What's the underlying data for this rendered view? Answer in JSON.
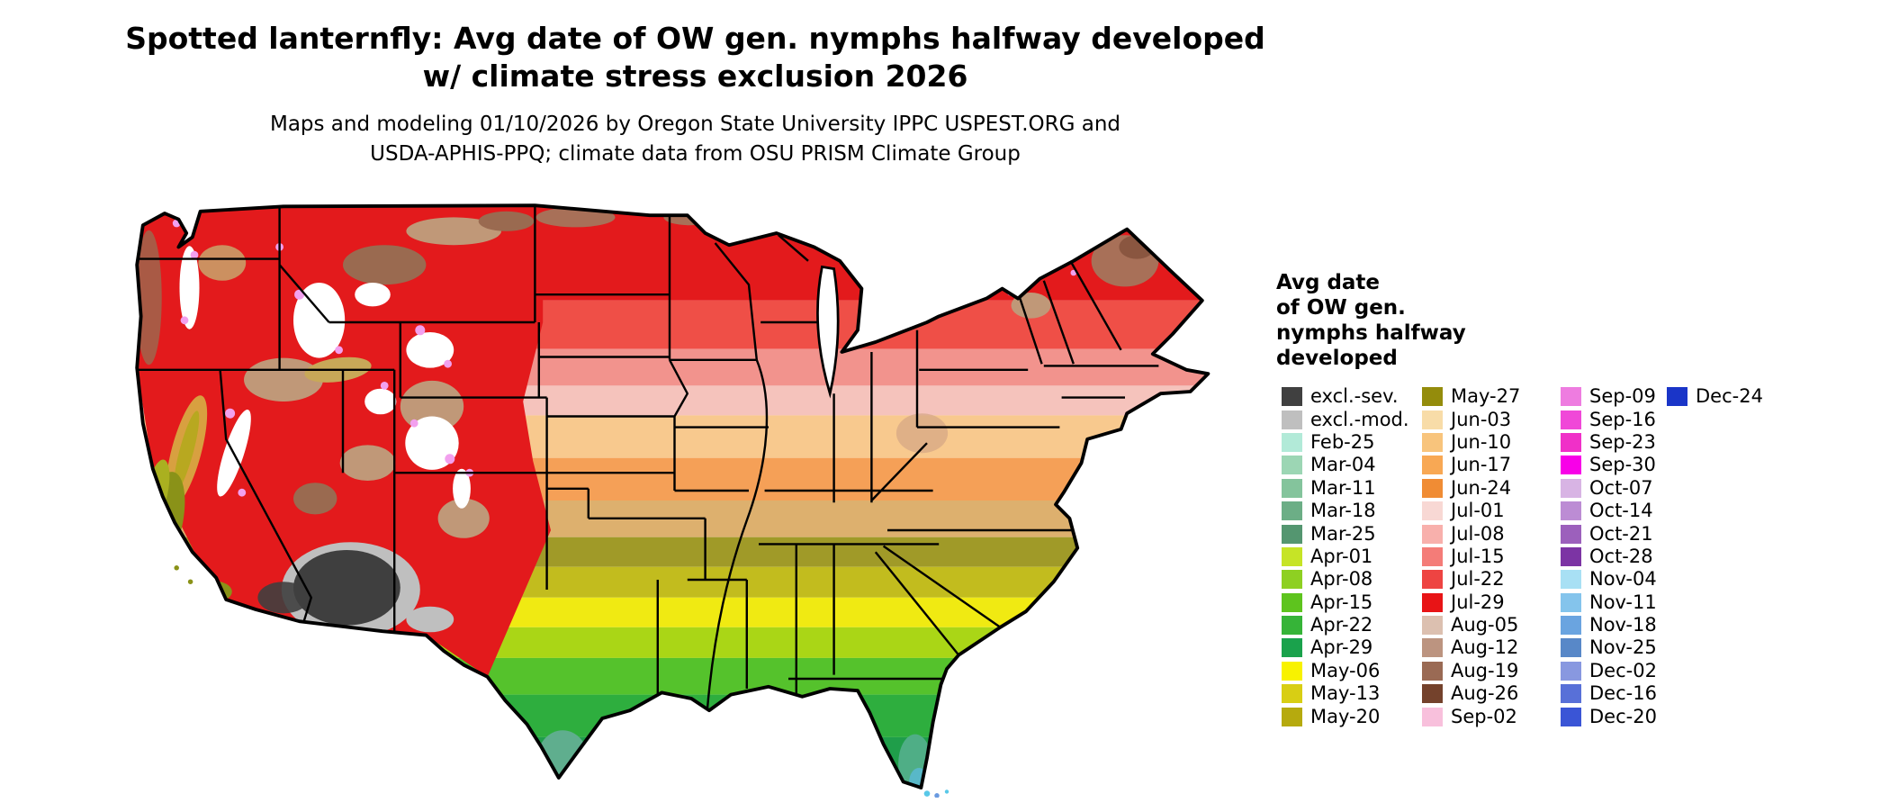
{
  "header": {
    "title_line1": "Spotted lanternfly: Avg date of OW gen. nymphs halfway developed",
    "title_line2": "w/ climate stress exclusion 2026",
    "subtitle_line1": "Maps and modeling 01/10/2026 by Oregon State University IPPC USPEST.ORG and",
    "subtitle_line2": "USDA-APHIS-PPQ; climate data from OSU PRISM Climate Group"
  },
  "legend": {
    "title_lines": [
      "Avg date",
      "of OW gen.",
      "nymphs halfway",
      "developed"
    ],
    "columns": [
      {
        "entries": [
          {
            "label": "excl.-sev.",
            "color": "#404040"
          },
          {
            "label": "excl.-mod.",
            "color": "#bfbfbf"
          },
          {
            "label": "Feb-25",
            "color": "#b2ead8"
          },
          {
            "label": "Mar-04",
            "color": "#9cd6b4"
          },
          {
            "label": "Mar-11",
            "color": "#84c49c"
          },
          {
            "label": "Mar-18",
            "color": "#6cae86"
          },
          {
            "label": "Mar-25",
            "color": "#549670"
          },
          {
            "label": "Apr-01",
            "color": "#c6e426"
          },
          {
            "label": "Apr-08",
            "color": "#8ed022"
          },
          {
            "label": "Apr-15",
            "color": "#5ec41e"
          },
          {
            "label": "Apr-22",
            "color": "#36b438"
          },
          {
            "label": "Apr-29",
            "color": "#1aa24c"
          },
          {
            "label": "May-06",
            "color": "#f8f200"
          },
          {
            "label": "May-13",
            "color": "#d8ce14"
          },
          {
            "label": "May-20",
            "color": "#b6aa0e"
          }
        ]
      },
      {
        "entries": [
          {
            "label": "May-27",
            "color": "#948c0c"
          },
          {
            "label": "Jun-03",
            "color": "#f8dca8"
          },
          {
            "label": "Jun-10",
            "color": "#f8c47c"
          },
          {
            "label": "Jun-17",
            "color": "#f8a854"
          },
          {
            "label": "Jun-24",
            "color": "#f08c34"
          },
          {
            "label": "Jul-01",
            "color": "#f8d8d4"
          },
          {
            "label": "Jul-08",
            "color": "#f8b0ac"
          },
          {
            "label": "Jul-15",
            "color": "#f47c78"
          },
          {
            "label": "Jul-22",
            "color": "#ee4442"
          },
          {
            "label": "Jul-29",
            "color": "#e81416"
          },
          {
            "label": "Aug-05",
            "color": "#dcc0b0"
          },
          {
            "label": "Aug-12",
            "color": "#bc9480"
          },
          {
            "label": "Aug-19",
            "color": "#9a6a54"
          },
          {
            "label": "Aug-26",
            "color": "#74422c"
          },
          {
            "label": "Sep-02",
            "color": "#f8c0dc"
          }
        ]
      },
      {
        "entries": [
          {
            "label": "Sep-09",
            "color": "#ee7ce0"
          },
          {
            "label": "Sep-16",
            "color": "#f048d8"
          },
          {
            "label": "Sep-23",
            "color": "#f030c8"
          },
          {
            "label": "Sep-30",
            "color": "#f800e8"
          },
          {
            "label": "Oct-07",
            "color": "#d8b4e4"
          },
          {
            "label": "Oct-14",
            "color": "#bc8cd4"
          },
          {
            "label": "Oct-21",
            "color": "#9c60bc"
          },
          {
            "label": "Oct-28",
            "color": "#7c34a4"
          },
          {
            "label": "Nov-04",
            "color": "#a8e0f4"
          },
          {
            "label": "Nov-11",
            "color": "#84c4ec"
          },
          {
            "label": "Nov-18",
            "color": "#6aa4e0"
          },
          {
            "label": "Nov-25",
            "color": "#5888c8"
          },
          {
            "label": "Dec-02",
            "color": "#8898e0"
          },
          {
            "label": "Dec-16",
            "color": "#5870d8"
          },
          {
            "label": "Dec-20",
            "color": "#3a55d6"
          }
        ]
      },
      {
        "entries": [
          {
            "label": "Dec-24",
            "color": "#1a35c8"
          }
        ]
      }
    ]
  }
}
